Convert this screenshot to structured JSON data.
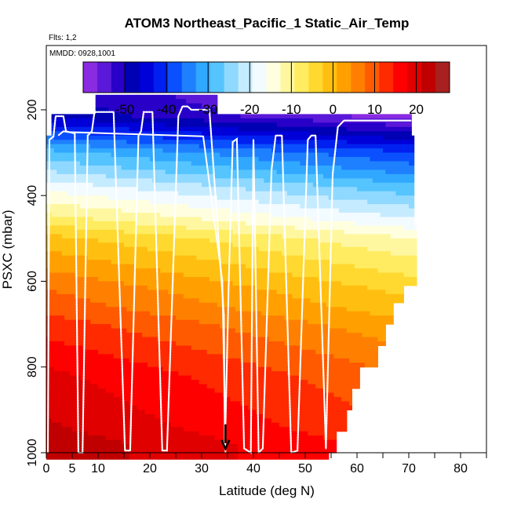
{
  "chart_data": {
    "type": "heatmap",
    "title": "ATOM3 Northeast_Pacific_1 Static_Air_Temp",
    "flights_label": "Flts: 1,2",
    "dates_label": "MMDD: 0928,1001",
    "xlabel": "Latitude (deg N)",
    "ylabel": "PSXC (mbar)",
    "xlim": [
      0,
      85
    ],
    "ylim": [
      1000,
      50
    ],
    "x_ticks": [
      0,
      5,
      10,
      20,
      30,
      40,
      50,
      60,
      70,
      80
    ],
    "x_minor_ticks": [
      15,
      25,
      35,
      45,
      55,
      65,
      75,
      85
    ],
    "y_ticks": [
      200,
      400,
      600,
      800,
      1000
    ],
    "colorbar": {
      "vmin": -60,
      "vmax": 28,
      "tick_values": [
        -50,
        -40,
        -30,
        -20,
        -10,
        0,
        10,
        20
      ],
      "tick_labels": [
        "-50",
        "-40",
        "-30",
        "-20",
        "-10",
        "0",
        "10",
        "20"
      ],
      "colors": [
        "#8a2be2",
        "#5a18d8",
        "#2800c8",
        "#0000b4",
        "#0000d8",
        "#0020f0",
        "#0a50ff",
        "#1e80ff",
        "#30a8ff",
        "#55c4ff",
        "#8fd8ff",
        "#c5ebff",
        "#f2fbff",
        "#ffffe0",
        "#fff7a0",
        "#ffec60",
        "#ffd830",
        "#ffbf10",
        "#ffa000",
        "#ff8000",
        "#ff5a00",
        "#ff2a00",
        "#ff0000",
        "#e00000",
        "#c00000",
        "#a82020"
      ]
    },
    "profile": [
      {
        "p": 175,
        "t": -54
      },
      {
        "p": 215,
        "t": -52
      },
      {
        "p": 260,
        "t": -42
      },
      {
        "p": 300,
        "t": -33
      },
      {
        "p": 340,
        "t": -28
      },
      {
        "p": 380,
        "t": -22
      },
      {
        "p": 420,
        "t": -17
      },
      {
        "p": 460,
        "t": -12
      },
      {
        "p": 500,
        "t": -6
      },
      {
        "p": 540,
        "t": -3
      },
      {
        "p": 580,
        "t": 0
      },
      {
        "p": 620,
        "t": 3
      },
      {
        "p": 660,
        "t": 5
      },
      {
        "p": 700,
        "t": 8
      },
      {
        "p": 740,
        "t": 10
      },
      {
        "p": 780,
        "t": 12
      },
      {
        "p": 820,
        "t": 14
      },
      {
        "p": 860,
        "t": 15
      },
      {
        "p": 900,
        "t": 16
      },
      {
        "p": 940,
        "t": 17
      },
      {
        "p": 980,
        "t": 19
      }
    ],
    "lat_gradient_per_deg": -0.16,
    "coverage": [
      {
        "p_top": 165,
        "p_bot": 210,
        "lat_min": 9.5,
        "lat_max": 33
      },
      {
        "p_top": 210,
        "p_bot": 260,
        "lat_min": 1,
        "lat_max": 70.5
      },
      {
        "p_top": 260,
        "p_bot": 470,
        "lat_min": 0,
        "lat_max": 71
      },
      {
        "p_top": 470,
        "p_bot": 610,
        "lat_min": 0,
        "lat_max": 71.5
      },
      {
        "p_top": 610,
        "p_bot": 650,
        "lat_min": 0,
        "lat_max": 69
      },
      {
        "p_top": 650,
        "p_bot": 700,
        "lat_min": 0,
        "lat_max": 67
      },
      {
        "p_top": 700,
        "p_bot": 750,
        "lat_min": 0,
        "lat_max": 65.5
      },
      {
        "p_top": 750,
        "p_bot": 800,
        "lat_min": 0,
        "lat_max": 64
      },
      {
        "p_top": 800,
        "p_bot": 850,
        "lat_min": 0,
        "lat_max": 60.5
      },
      {
        "p_top": 850,
        "p_bot": 900,
        "lat_min": 0,
        "lat_max": 59
      },
      {
        "p_top": 900,
        "p_bot": 950,
        "lat_min": 0,
        "lat_max": 58
      },
      {
        "p_top": 950,
        "p_bot": 1000,
        "lat_min": 0,
        "lat_max": 56
      },
      {
        "p_top": 1000,
        "p_bot": 1015,
        "lat_min": 0,
        "lat_max": 54.5
      }
    ],
    "flight_track": [
      {
        "lat": 0.3,
        "p": 1000
      },
      {
        "lat": 0.6,
        "p": 270
      },
      {
        "lat": 1.4,
        "p": 262
      },
      {
        "lat": 1.8,
        "p": 215
      },
      {
        "lat": 3.3,
        "p": 215
      },
      {
        "lat": 3.8,
        "p": 250
      },
      {
        "lat": 5.5,
        "p": 255
      },
      {
        "lat": 6.2,
        "p": 1000
      },
      {
        "lat": 7.0,
        "p": 1000
      },
      {
        "lat": 8.0,
        "p": 260
      },
      {
        "lat": 8.8,
        "p": 250
      },
      {
        "lat": 9.3,
        "p": 205
      },
      {
        "lat": 13.0,
        "p": 205
      },
      {
        "lat": 15.2,
        "p": 995
      },
      {
        "lat": 16.2,
        "p": 995
      },
      {
        "lat": 17.8,
        "p": 260
      },
      {
        "lat": 18.3,
        "p": 250
      },
      {
        "lat": 18.8,
        "p": 205
      },
      {
        "lat": 20.5,
        "p": 205
      },
      {
        "lat": 22.4,
        "p": 995
      },
      {
        "lat": 23.3,
        "p": 995
      },
      {
        "lat": 25.5,
        "p": 215
      },
      {
        "lat": 26.3,
        "p": 192
      },
      {
        "lat": 27.3,
        "p": 192
      },
      {
        "lat": 28.0,
        "p": 200
      },
      {
        "lat": 31.5,
        "p": 200
      },
      {
        "lat": 34.3,
        "p": 680
      },
      {
        "lat": 34.5,
        "p": 990
      },
      {
        "lat": 35.2,
        "p": 620
      },
      {
        "lat": 36.0,
        "p": 275
      },
      {
        "lat": 36.8,
        "p": 268
      },
      {
        "lat": 38.2,
        "p": 990
      },
      {
        "lat": 39.5,
        "p": 1000
      },
      {
        "lat": 40.0,
        "p": 270
      },
      {
        "lat": 41.0,
        "p": 1000
      },
      {
        "lat": 41.8,
        "p": 990
      },
      {
        "lat": 43.5,
        "p": 340
      },
      {
        "lat": 44.3,
        "p": 260
      },
      {
        "lat": 45.5,
        "p": 260
      },
      {
        "lat": 47.3,
        "p": 1000
      },
      {
        "lat": 48.5,
        "p": 995
      },
      {
        "lat": 50.5,
        "p": 270
      },
      {
        "lat": 51.2,
        "p": 260
      },
      {
        "lat": 52.0,
        "p": 260
      },
      {
        "lat": 54.0,
        "p": 990
      },
      {
        "lat": 55.3,
        "p": 350
      },
      {
        "lat": 56.3,
        "p": 240
      },
      {
        "lat": 57.5,
        "p": 225
      },
      {
        "lat": 70.5,
        "p": 225
      }
    ],
    "dashed_track": [
      {
        "lat": 2.3,
        "p": 260
      },
      {
        "lat": 3.3,
        "p": 250
      },
      {
        "lat": 4.3,
        "p": 252
      },
      {
        "lat": 30.3,
        "p": 262
      },
      {
        "lat": 34.0,
        "p": 600
      },
      {
        "lat": 34.6,
        "p": 1000
      }
    ],
    "marker": {
      "lat": 34.6,
      "p": 985,
      "label": "arrow"
    }
  }
}
